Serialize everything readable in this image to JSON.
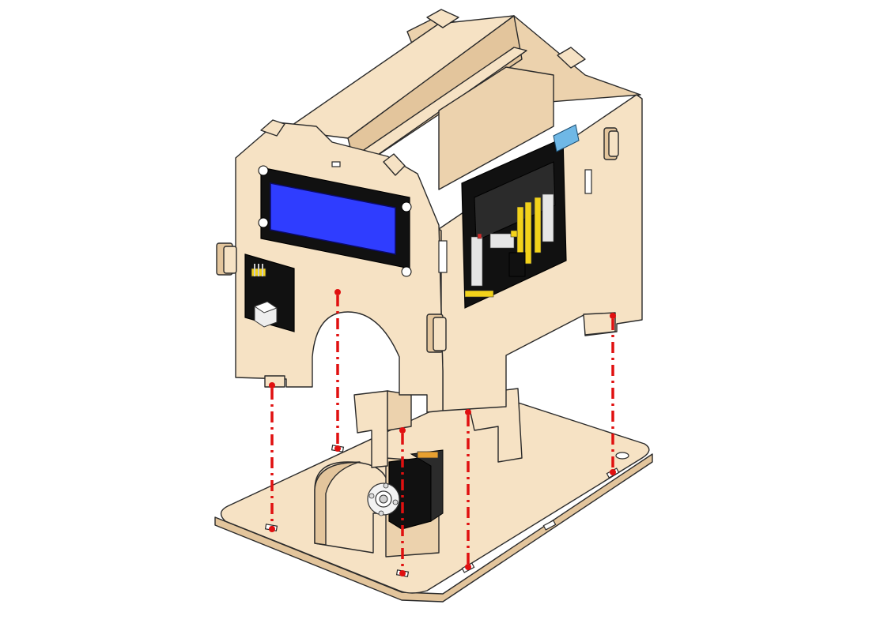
{
  "diagram": {
    "colors": {
      "wood": "#f6e2c4",
      "guide": "#e01010",
      "lcd_screen": "#2f3dff",
      "pcb": "#111111",
      "header_pins": "#f2d21a",
      "sensor_module": "#6fb8e6"
    },
    "icons": [
      "lcd-display-icon",
      "button-module-icon",
      "controller-board-icon",
      "servo-motor-icon",
      "base-plate-icon"
    ]
  }
}
